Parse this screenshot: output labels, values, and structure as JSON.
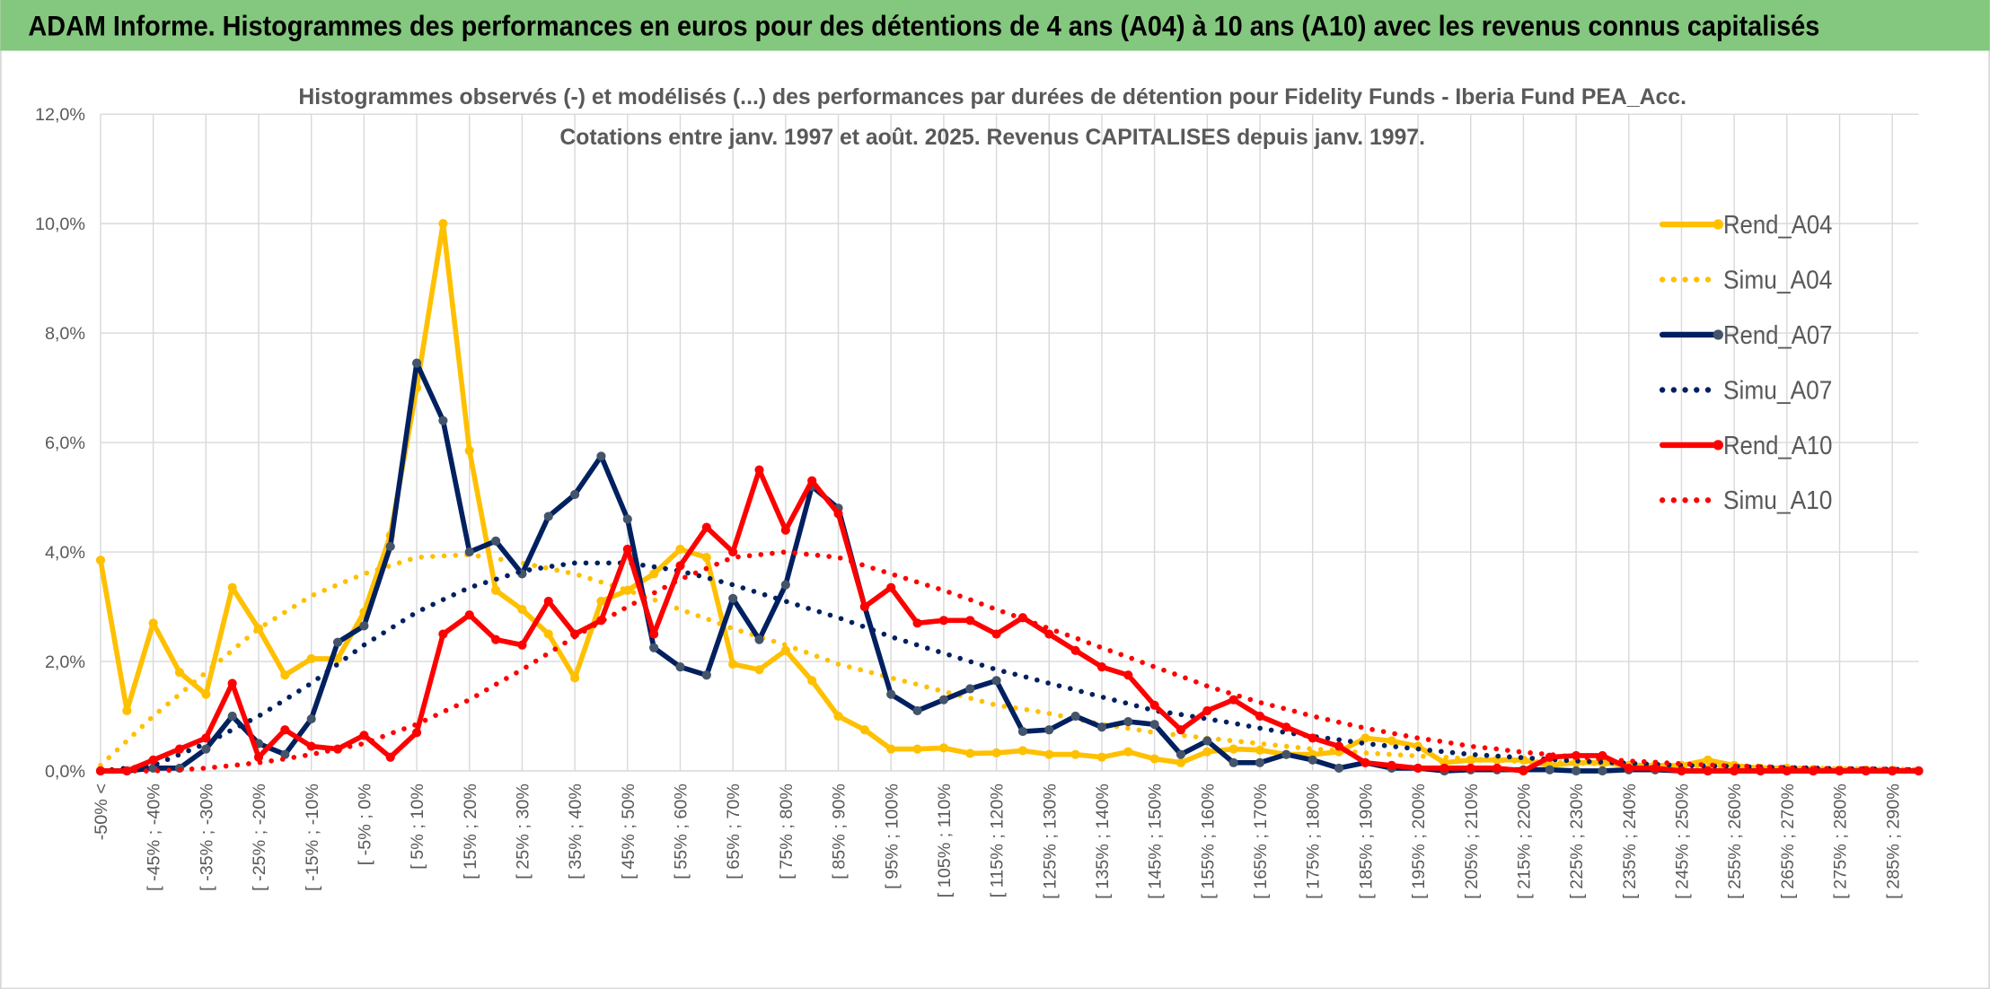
{
  "header": {
    "title": "ADAM Informe. Histogrammes des performances en euros pour des détentions de 4 ans (A04) à 10 ans (A10) avec les revenus connus capitalisés"
  },
  "chart_data": {
    "type": "line",
    "title": "Histogrammes observés (-) et modélisés (...) des performances par durées de détention pour Fidelity Funds - Iberia Fund PEA_Acc.",
    "subtitle": "Cotations entre janv. 1997 et août. 2025. Revenus CAPITALISES depuis janv. 1997.",
    "categories": [
      "-50% <",
      null,
      "[ -45% ; -40%",
      null,
      "[ -35% ; -30%",
      null,
      "[ -25% ; -20%",
      null,
      "[ -15% ; -10%",
      null,
      "[ -5% ; 0%",
      null,
      "[ 5% ; 10%",
      null,
      "[ 15% ; 20%",
      null,
      "[ 25% ; 30%",
      null,
      "[ 35% ; 40%",
      null,
      "[ 45% ; 50%",
      null,
      "[ 55% ; 60%",
      null,
      "[ 65% ; 70%",
      null,
      "[ 75% ; 80%",
      null,
      "[ 85% ; 90%",
      null,
      "[ 95% ; 100%",
      null,
      "[ 105% ; 110%",
      null,
      "[ 115% ; 120%",
      null,
      "[ 125% ; 130%",
      null,
      "[ 135% ; 140%",
      null,
      "[ 145% ; 150%",
      null,
      "[ 155% ; 160%",
      null,
      "[ 165% ; 170%",
      null,
      "[ 175% ; 180%",
      null,
      "[ 185% ; 190%",
      null,
      "[ 195% ; 200%",
      null,
      "[ 205% ; 210%",
      null,
      "[ 215% ; 220%",
      null,
      "[ 225% ; 230%",
      null,
      "[ 235% ; 240%",
      null,
      "[ 245% ; 250%",
      null,
      "[ 255% ; 260%",
      null,
      "[ 265% ; 270%",
      null,
      "[ 275% ; 280%",
      null,
      "[ 285% ; 290%",
      null
    ],
    "ylim": [
      0,
      12
    ],
    "yticks": [
      {
        "value": 0,
        "label": "0,0%"
      },
      {
        "value": 2,
        "label": "2,0%"
      },
      {
        "value": 4,
        "label": "4,0%"
      },
      {
        "value": 6,
        "label": "6,0%"
      },
      {
        "value": 8,
        "label": "8,0%"
      },
      {
        "value": 10,
        "label": "10,0%"
      },
      {
        "value": 12,
        "label": "12,0%"
      }
    ],
    "grid": true,
    "legend": "right",
    "series": [
      {
        "name": "Rend_A04",
        "color": "#ffc000",
        "line_style": "solid",
        "marker": true,
        "values": [
          3.85,
          1.1,
          2.7,
          1.8,
          1.4,
          3.35,
          2.6,
          1.75,
          2.05,
          2.05,
          2.9,
          4.3,
          7.0,
          10.0,
          5.85,
          3.3,
          2.95,
          2.5,
          1.7,
          3.1,
          3.3,
          3.6,
          4.05,
          3.9,
          1.95,
          1.85,
          2.2,
          1.65,
          1.0,
          0.75,
          0.4,
          0.4,
          0.42,
          0.32,
          0.33,
          0.37,
          0.3,
          0.3,
          0.25,
          0.35,
          0.22,
          0.15,
          0.35,
          0.4,
          0.38,
          0.3,
          0.3,
          0.35,
          0.6,
          0.55,
          0.45,
          0.15,
          0.2,
          0.2,
          0.2,
          0.1,
          0.15,
          0.15,
          0.1,
          0.1,
          0.1,
          0.2,
          0.1,
          0.05,
          0.05,
          0.03,
          0.02,
          0.02,
          0.01,
          0
        ]
      },
      {
        "name": "Simu_A04",
        "color": "#ffc000",
        "line_style": "dotted",
        "marker": false,
        "values": [
          0.1,
          0.55,
          1.0,
          1.4,
          1.8,
          2.2,
          2.6,
          2.9,
          3.2,
          3.4,
          3.6,
          3.75,
          3.9,
          3.93,
          3.95,
          3.88,
          3.8,
          3.7,
          3.6,
          3.45,
          3.3,
          3.13,
          2.95,
          2.78,
          2.6,
          2.45,
          2.3,
          2.13,
          1.95,
          1.83,
          1.7,
          1.58,
          1.45,
          1.33,
          1.2,
          1.13,
          1.05,
          0.95,
          0.85,
          0.78,
          0.7,
          0.65,
          0.6,
          0.55,
          0.5,
          0.45,
          0.4,
          0.37,
          0.33,
          0.3,
          0.27,
          0.25,
          0.22,
          0.2,
          0.17,
          0.16,
          0.14,
          0.13,
          0.11,
          0.1,
          0.09,
          0.08,
          0.07,
          0.06,
          0.05,
          0.05,
          0.04,
          0.04,
          0.03,
          0.03
        ]
      },
      {
        "name": "Rend_A07",
        "color": "#002060",
        "marker_color": "#44546a",
        "line_style": "solid",
        "marker": true,
        "values": [
          0,
          0,
          0.05,
          0.05,
          0.4,
          1.0,
          0.5,
          0.3,
          0.95,
          2.35,
          2.65,
          4.1,
          7.45,
          6.4,
          4.0,
          4.2,
          3.6,
          4.65,
          5.05,
          5.75,
          4.6,
          2.25,
          1.9,
          1.75,
          3.15,
          2.4,
          3.4,
          5.2,
          4.8,
          3.0,
          1.4,
          1.1,
          1.3,
          1.5,
          1.65,
          0.72,
          0.75,
          1.0,
          0.8,
          0.9,
          0.85,
          0.3,
          0.55,
          0.15,
          0.15,
          0.3,
          0.2,
          0.05,
          0.15,
          0.05,
          0.05,
          0,
          0.02,
          0.02,
          0.02,
          0.02,
          0,
          0,
          0.02,
          0.02,
          0,
          0,
          0,
          0,
          0,
          0,
          0,
          0,
          0,
          0
        ]
      },
      {
        "name": "Simu_A07",
        "color": "#002060",
        "line_style": "dotted",
        "marker": false,
        "values": [
          0,
          0.05,
          0.1,
          0.3,
          0.5,
          0.75,
          1.0,
          1.3,
          1.6,
          1.95,
          2.3,
          2.6,
          2.9,
          3.13,
          3.35,
          3.5,
          3.65,
          3.73,
          3.8,
          3.8,
          3.8,
          3.73,
          3.65,
          3.53,
          3.4,
          3.25,
          3.1,
          2.95,
          2.8,
          2.63,
          2.45,
          2.3,
          2.15,
          2.0,
          1.85,
          1.73,
          1.6,
          1.48,
          1.35,
          1.23,
          1.1,
          1.03,
          0.95,
          0.87,
          0.78,
          0.7,
          0.63,
          0.57,
          0.5,
          0.45,
          0.4,
          0.35,
          0.3,
          0.27,
          0.24,
          0.21,
          0.18,
          0.16,
          0.14,
          0.12,
          0.1,
          0.09,
          0.08,
          0.07,
          0.06,
          0.05,
          0.04,
          0.04,
          0.03,
          0.02
        ]
      },
      {
        "name": "Rend_A10",
        "color": "#ff0000",
        "line_style": "solid",
        "marker": true,
        "values": [
          0,
          0,
          0.2,
          0.4,
          0.6,
          1.6,
          0.25,
          0.75,
          0.45,
          0.4,
          0.65,
          0.25,
          0.7,
          2.5,
          2.85,
          2.4,
          2.3,
          3.1,
          2.5,
          2.75,
          4.05,
          2.5,
          3.75,
          4.45,
          4.0,
          5.5,
          4.4,
          5.3,
          4.7,
          3.0,
          3.35,
          2.7,
          2.75,
          2.75,
          2.5,
          2.8,
          2.5,
          2.2,
          1.9,
          1.75,
          1.2,
          0.75,
          1.1,
          1.3,
          1.0,
          0.8,
          0.6,
          0.45,
          0.15,
          0.1,
          0.05,
          0.05,
          0.05,
          0.05,
          0,
          0.25,
          0.28,
          0.28,
          0.05,
          0.05,
          0,
          0,
          0,
          0,
          0,
          0,
          0,
          0,
          0,
          0
        ]
      },
      {
        "name": "Simu_A10",
        "color": "#ff0000",
        "line_style": "dotted",
        "marker": false,
        "values": [
          0,
          0,
          0,
          0.02,
          0.05,
          0.1,
          0.15,
          0.22,
          0.3,
          0.4,
          0.5,
          0.68,
          0.85,
          1.08,
          1.3,
          1.58,
          1.85,
          2.15,
          2.45,
          2.73,
          3.0,
          3.25,
          3.5,
          3.7,
          3.9,
          3.95,
          4.0,
          3.95,
          3.9,
          3.75,
          3.6,
          3.45,
          3.3,
          3.13,
          2.95,
          2.78,
          2.6,
          2.43,
          2.25,
          2.08,
          1.9,
          1.73,
          1.55,
          1.4,
          1.25,
          1.13,
          1.0,
          0.89,
          0.78,
          0.69,
          0.6,
          0.53,
          0.45,
          0.4,
          0.34,
          0.3,
          0.25,
          0.22,
          0.18,
          0.16,
          0.13,
          0.11,
          0.09,
          0.08,
          0.06,
          0.05,
          0.04,
          0.04,
          0.03,
          0.02
        ]
      }
    ]
  }
}
